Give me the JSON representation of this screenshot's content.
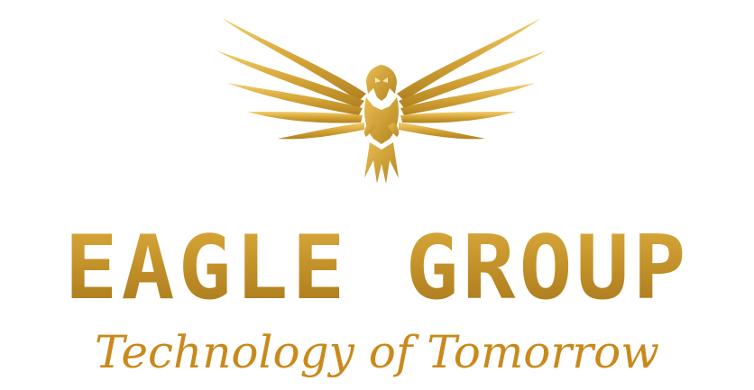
{
  "brand": {
    "name": "EAGLE GROUP",
    "tagline": "Technology of Tomorrow"
  },
  "emblem": {
    "icon": "eagle-icon"
  },
  "colors": {
    "gold_light": "#f0c75e",
    "gold_mid": "#d4a437",
    "gold_dark": "#a8781c",
    "tagline": "#c98a1c",
    "background": "#ffffff"
  }
}
